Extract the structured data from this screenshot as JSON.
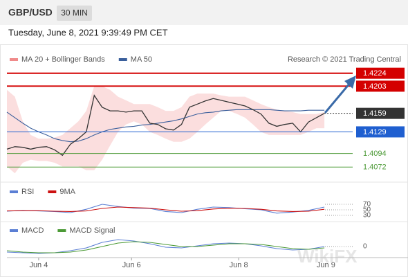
{
  "header": {
    "symbol": "GBP/USD",
    "timeframe": "30 MIN",
    "datetime": "Tuesday, June 8, 2021 9:39:49 PM CET",
    "credit": "Research © 2021 Trading Central",
    "watermark": "WikiFX"
  },
  "chart_data": [
    {
      "type": "line",
      "xlim": [
        0,
        44
      ],
      "ylim": [
        1.4051,
        1.4236
      ],
      "x": [
        0,
        1,
        2,
        3,
        4,
        5,
        6,
        7,
        8,
        9,
        10,
        11,
        12,
        13,
        14,
        15,
        16,
        17,
        18,
        19,
        20,
        21,
        22,
        23,
        24,
        25,
        26,
        27,
        28,
        29,
        30,
        31,
        32,
        33,
        34,
        35,
        36,
        37,
        38,
        39,
        40
      ],
      "price": {
        "color": "#333333",
        "values": [
          1.4101,
          1.4105,
          1.4104,
          1.4101,
          1.4104,
          1.4105,
          1.41,
          1.4091,
          1.4109,
          1.4118,
          1.4129,
          1.4188,
          1.4169,
          1.4163,
          1.4163,
          1.4161,
          1.4163,
          1.4163,
          1.4143,
          1.4141,
          1.4134,
          1.4132,
          1.4141,
          1.4169,
          1.4174,
          1.4179,
          1.4183,
          1.418,
          1.4177,
          1.4174,
          1.4171,
          1.4165,
          1.4158,
          1.4143,
          1.4138,
          1.4141,
          1.4143,
          1.4129,
          1.4145,
          1.4152,
          1.4159
        ]
      },
      "band": {
        "name": "MA 20 + Bollinger Bands",
        "color": "#f08a8a",
        "upper": [
          1.4197,
          1.4186,
          1.4146,
          1.4124,
          1.4118,
          1.4118,
          1.412,
          1.4124,
          1.4135,
          1.4146,
          1.4163,
          1.4203,
          1.4203,
          1.4197,
          1.4186,
          1.418,
          1.4174,
          1.4174,
          1.4174,
          1.4169,
          1.4163,
          1.4163,
          1.4169,
          1.4186,
          1.4191,
          1.4191,
          1.4191,
          1.4188,
          1.4186,
          1.4186,
          1.4186,
          1.418,
          1.4174,
          1.4169,
          1.4165,
          1.4163,
          1.4161,
          1.4158,
          1.4158,
          1.4158,
          1.4161
        ],
        "lower": [
          1.4073,
          1.4062,
          1.4079,
          1.4084,
          1.4082,
          1.4082,
          1.4079,
          1.4073,
          1.4073,
          1.4073,
          1.4067,
          1.4067,
          1.4084,
          1.4107,
          1.4129,
          1.4141,
          1.4146,
          1.4141,
          1.4129,
          1.4124,
          1.4118,
          1.4113,
          1.4113,
          1.4118,
          1.4129,
          1.4141,
          1.4152,
          1.4163,
          1.4163,
          1.4158,
          1.4152,
          1.4141,
          1.4129,
          1.4124,
          1.4124,
          1.4124,
          1.4124,
          1.4124,
          1.4129,
          1.4135,
          1.4135
        ]
      },
      "series": [
        {
          "name": "MA 50",
          "color": "#3a5f9c",
          "values": [
            1.4161,
            1.4152,
            1.4143,
            1.4135,
            1.4129,
            1.4124,
            1.4118,
            1.4115,
            1.4113,
            1.4114,
            1.4118,
            1.4124,
            1.4129,
            1.4133,
            1.4135,
            1.4137,
            1.4138,
            1.414,
            1.4141,
            1.4143,
            1.4145,
            1.4147,
            1.415,
            1.4154,
            1.4158,
            1.416,
            1.4161,
            1.4163,
            1.4164,
            1.4165,
            1.4165,
            1.4165,
            1.4165,
            1.4165,
            1.4164,
            1.4163,
            1.4163,
            1.4163,
            1.4164,
            1.4164,
            1.4164
          ]
        }
      ],
      "levels": [
        {
          "value": 1.4224,
          "color": "#d40000",
          "boxed": true
        },
        {
          "value": 1.4203,
          "color": "#d40000",
          "boxed": true
        },
        {
          "value": 1.4159,
          "color": "#333333",
          "boxed": true,
          "dotted": true
        },
        {
          "value": 1.4129,
          "color": "#1f5fd0",
          "boxed": true
        },
        {
          "value": 1.4094,
          "color": "#4c9a36",
          "boxed": false
        },
        {
          "value": 1.4072,
          "color": "#4c9a36",
          "boxed": false
        }
      ]
    },
    {
      "type": "line",
      "xlim": [
        0,
        44
      ],
      "ylim": [
        17.5,
        82.5
      ],
      "x": [
        0,
        2,
        4,
        6,
        8,
        10,
        12,
        14,
        16,
        18,
        20,
        22,
        24,
        26,
        28,
        30,
        32,
        34,
        36,
        38,
        40
      ],
      "series": [
        {
          "name": "RSI",
          "color": "#5b7fd4",
          "values": [
            45,
            48,
            46,
            44,
            40,
            52,
            70,
            62,
            56,
            55,
            44,
            40,
            52,
            60,
            58,
            54,
            50,
            38,
            42,
            48,
            60
          ]
        },
        {
          "name": "9MA",
          "color": "#cc1111",
          "values": [
            46,
            47,
            47,
            45,
            44,
            46,
            55,
            60,
            58,
            56,
            50,
            45,
            47,
            53,
            56,
            55,
            52,
            46,
            44,
            45,
            52
          ]
        }
      ],
      "yticks": [
        70,
        50,
        30
      ],
      "grid": true
    },
    {
      "type": "line",
      "xlim": [
        0,
        44
      ],
      "ylim": [
        -0.0016,
        0.0016
      ],
      "x": [
        0,
        2,
        4,
        6,
        8,
        10,
        12,
        14,
        16,
        18,
        20,
        22,
        24,
        26,
        28,
        30,
        32,
        34,
        36,
        38,
        40
      ],
      "series": [
        {
          "name": "MACD",
          "color": "#5b7fd4",
          "values": [
            -0.0008,
            -0.0009,
            -0.001,
            -0.0009,
            -0.0006,
            -0.0002,
            0.0006,
            0.001,
            0.0008,
            0.0004,
            -0.0001,
            -0.0002,
            0.0001,
            0.0004,
            0.0005,
            0.0004,
            0.0001,
            -0.0003,
            -0.0005,
            -0.0004,
            0
          ]
        },
        {
          "name": "MACD Signal",
          "color": "#4c9a36",
          "values": [
            -0.0006,
            -0.0008,
            -0.0009,
            -0.0009,
            -0.0008,
            -0.0005,
            0,
            0.0005,
            0.0007,
            0.0006,
            0.0003,
            0,
            0,
            0.0002,
            0.0004,
            0.0004,
            0.0003,
            0,
            -0.0003,
            -0.0004,
            -0.0002
          ]
        }
      ],
      "yticks": [
        0
      ],
      "grid": true,
      "xticks": [
        {
          "value": 4,
          "label": "Jun 4"
        },
        {
          "value": 15.7,
          "label": "Jun 6"
        },
        {
          "value": 29.2,
          "label": "Jun 8"
        },
        {
          "value": 40.2,
          "label": "Jun 9"
        }
      ]
    }
  ]
}
